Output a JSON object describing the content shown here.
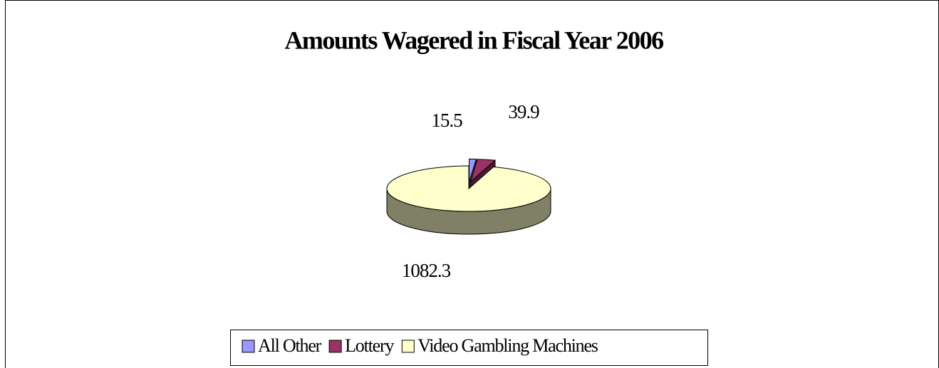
{
  "chart_data": {
    "type": "pie3d",
    "title": "Amounts Wagered in Fiscal Year 2006",
    "categories": [
      "All Other",
      "Lottery",
      "Video Gambling Machines"
    ],
    "values": [
      15.5,
      39.9,
      1082.3
    ],
    "colors": [
      "#9999ff",
      "#993366",
      "#ffffcc"
    ],
    "legend": "bottom"
  }
}
